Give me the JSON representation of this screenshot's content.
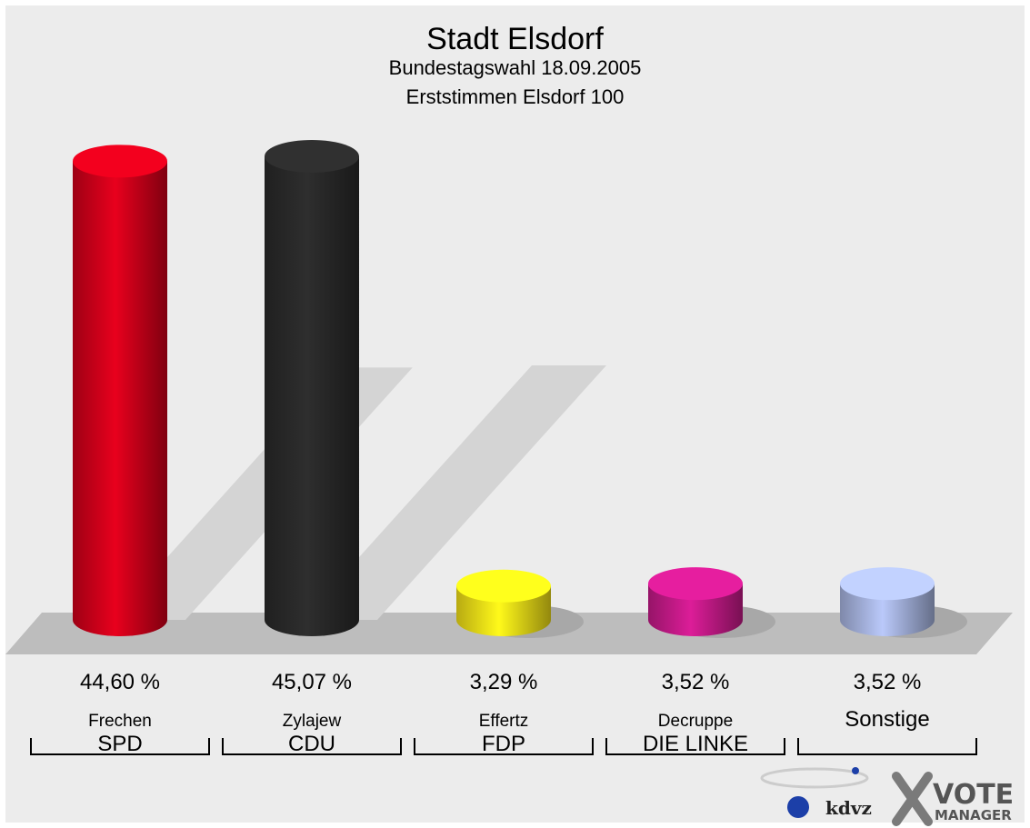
{
  "chart_data": {
    "type": "bar",
    "title": "Stadt Elsdorf",
    "subtitle": [
      "Bundestagswahl 18.09.2005",
      "Erststimmen Elsdorf 100"
    ],
    "ylim": [
      0,
      50
    ],
    "grid": false,
    "legend": "none",
    "categories": [
      {
        "candidate": "Frechen",
        "party": "SPD",
        "value": 44.6,
        "label": "44,60 %",
        "color": "#d3001a"
      },
      {
        "candidate": "Zylajew",
        "party": "CDU",
        "value": 45.07,
        "label": "45,07 %",
        "color": "#2a2a2a"
      },
      {
        "candidate": "Effertz",
        "party": "FDP",
        "value": 3.29,
        "label": "3,29 %",
        "color": "#f5e218"
      },
      {
        "candidate": "Decruppe",
        "party": "DIE LINKE",
        "value": 3.52,
        "label": "3,52 %",
        "color": "#c81a8a"
      },
      {
        "candidate": "Sonstige",
        "party": "",
        "value": 3.52,
        "label": "3,52 %",
        "color": "#a9b7e3"
      }
    ]
  },
  "logo": {
    "kdvz": "kdvz",
    "vote": "VOTE",
    "manager": "MANAGER"
  }
}
